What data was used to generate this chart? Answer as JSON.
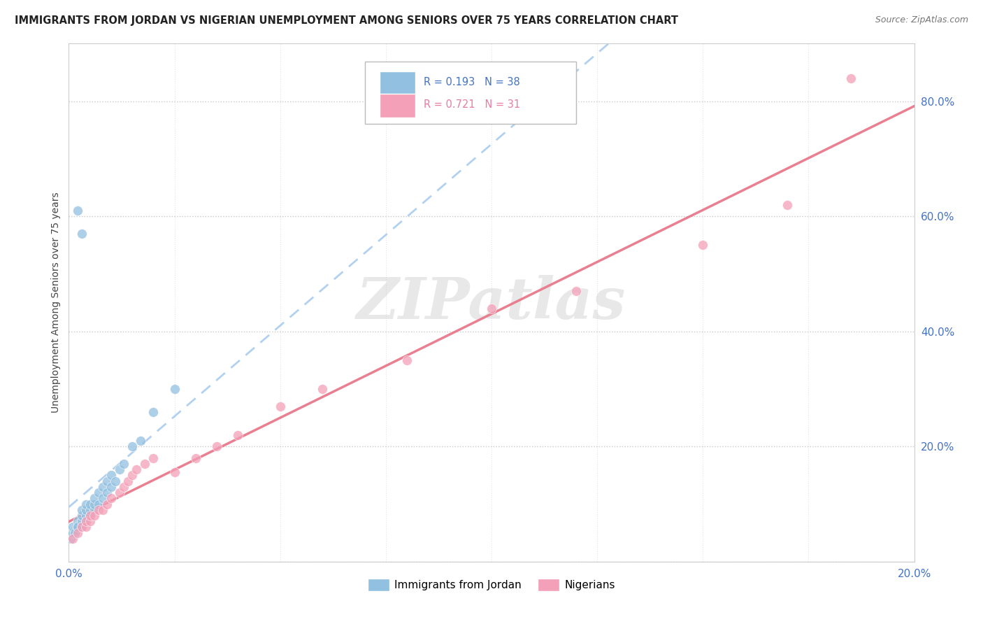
{
  "title": "IMMIGRANTS FROM JORDAN VS NIGERIAN UNEMPLOYMENT AMONG SENIORS OVER 75 YEARS CORRELATION CHART",
  "source": "Source: ZipAtlas.com",
  "ylabel": "Unemployment Among Seniors over 75 years",
  "xlim": [
    0.0,
    0.2
  ],
  "ylim": [
    0.0,
    0.9
  ],
  "yticks": [
    0.0,
    0.2,
    0.4,
    0.6,
    0.8
  ],
  "ytick_labels": [
    "",
    "20.0%",
    "40.0%",
    "60.0%",
    "80.0%"
  ],
  "legend_r1": "R = 0.193",
  "legend_n1": "N = 38",
  "legend_r2": "R = 0.721",
  "legend_n2": "N = 31",
  "color_blue": "#92C0E0",
  "color_pink": "#F4A0B8",
  "color_blue_line": "#5B9BD5",
  "color_pink_line": "#E8788A",
  "color_dashed": "#AACCEE",
  "watermark": "ZIPatlas",
  "background_color": "#FFFFFF",
  "jordan_x": [
    0.0005,
    0.001,
    0.001,
    0.0015,
    0.002,
    0.002,
    0.002,
    0.003,
    0.003,
    0.003,
    0.003,
    0.004,
    0.004,
    0.004,
    0.004,
    0.005,
    0.005,
    0.005,
    0.006,
    0.006,
    0.006,
    0.007,
    0.007,
    0.008,
    0.008,
    0.009,
    0.009,
    0.01,
    0.01,
    0.011,
    0.012,
    0.013,
    0.015,
    0.017,
    0.02,
    0.025,
    0.003,
    0.002
  ],
  "jordan_y": [
    0.04,
    0.05,
    0.06,
    0.05,
    0.06,
    0.07,
    0.06,
    0.06,
    0.07,
    0.08,
    0.09,
    0.07,
    0.08,
    0.09,
    0.1,
    0.08,
    0.09,
    0.1,
    0.09,
    0.1,
    0.11,
    0.1,
    0.12,
    0.11,
    0.13,
    0.12,
    0.14,
    0.13,
    0.15,
    0.14,
    0.16,
    0.17,
    0.2,
    0.21,
    0.26,
    0.3,
    0.57,
    0.61
  ],
  "nigerian_x": [
    0.001,
    0.002,
    0.003,
    0.004,
    0.004,
    0.005,
    0.005,
    0.006,
    0.007,
    0.008,
    0.009,
    0.01,
    0.012,
    0.013,
    0.014,
    0.015,
    0.016,
    0.018,
    0.02,
    0.025,
    0.03,
    0.035,
    0.04,
    0.05,
    0.06,
    0.08,
    0.1,
    0.12,
    0.15,
    0.17,
    0.185
  ],
  "nigerian_y": [
    0.04,
    0.05,
    0.06,
    0.06,
    0.07,
    0.07,
    0.08,
    0.08,
    0.09,
    0.09,
    0.1,
    0.11,
    0.12,
    0.13,
    0.14,
    0.15,
    0.16,
    0.17,
    0.18,
    0.155,
    0.18,
    0.2,
    0.22,
    0.27,
    0.3,
    0.35,
    0.44,
    0.47,
    0.55,
    0.62,
    0.84
  ]
}
